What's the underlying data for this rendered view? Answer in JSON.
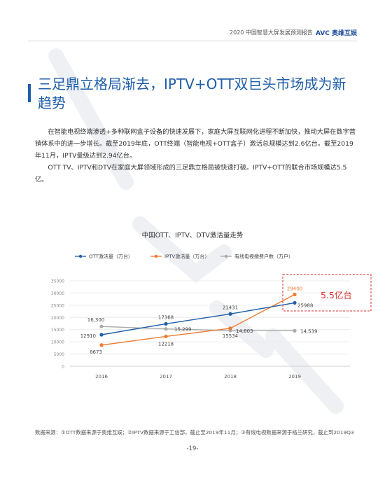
{
  "header": {
    "report_title": "2020 中国智慧大屏发展预测报告",
    "brand": "AVC 奥维互娱"
  },
  "title": "三足鼎立格局渐去，IPTV+OTT双巨头市场成为新趋势",
  "paragraphs": [
    "在智能电视终端渗透+多种联网盒子设备的快速发展下，家庭大屏互联网化进程不断加快，推动大屏在数字营销体系中的进一步增长。截至2019年底，OTT终端（智能电视+OTT盒子）激活总规模达到2.6亿台。截至2019年11月，IPTV量级达到2.94亿台。",
    "OTT TV、IPTV和DTV在家庭大屏领域形成的三足鼎立格局被快速打破。IPTV+OTT的联合市场规模达5.5亿。"
  ],
  "chart_data": {
    "type": "line",
    "title": "中国OTT、IPTV、DTV激活量走势",
    "categories": [
      "2016",
      "2017",
      "2018",
      "2019"
    ],
    "ylim": [
      0,
      35000
    ],
    "yticks": [
      "0",
      "5000",
      "10000",
      "15000",
      "20000",
      "25000",
      "30000",
      "35000"
    ],
    "legend_position": "top",
    "series": [
      {
        "name": "OTT激活量（万台）",
        "values": [
          12910,
          17368,
          21431,
          25988
        ],
        "labels": [
          "12910",
          "17368",
          "21431",
          "25988"
        ],
        "color": "#1f5ea8"
      },
      {
        "name": "IPTV激活量（万台）",
        "values": [
          8673,
          12218,
          15534,
          29400
        ],
        "labels": [
          "8673",
          "12218",
          "15534",
          "29400"
        ],
        "color": "#ee7a30"
      },
      {
        "name": "有线电视缴费户数（万户）",
        "values": [
          16300,
          15299,
          14603,
          14539
        ],
        "labels": [
          "16,300",
          "15,299",
          "14,603",
          "14,539"
        ],
        "color": "#aaaaaa"
      }
    ],
    "annotation": {
      "text": "5.5亿台",
      "color": "#d9302c"
    }
  },
  "source": "数据来源：①OTT数据来源于奥维互娱；②IPTV数据来源于工信部，截止至2019年11月；③有线电视数据来源于格兰研究，截止到2019Q3",
  "page_number": "-19-"
}
